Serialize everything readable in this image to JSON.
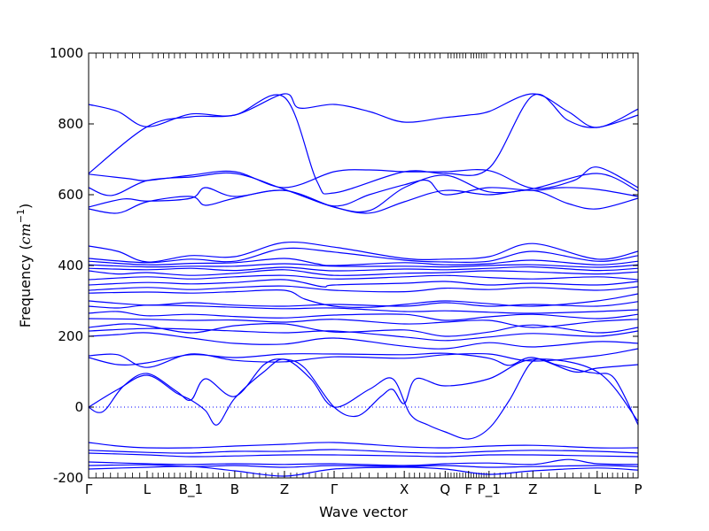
{
  "chart_data": {
    "type": "line",
    "title": "",
    "xlabel": "Wave vector",
    "ylabel": "Frequency (cm⁻¹)",
    "ylabel_parts": {
      "prefix": "Frequency (",
      "unit": "cm",
      "exp": "−1",
      "suffix": ")"
    },
    "ylim": [
      -200,
      1000
    ],
    "yticks": [
      -200,
      0,
      200,
      400,
      600,
      800,
      1000
    ],
    "xlim": [
      0,
      9.4
    ],
    "high_symmetry_points": [
      {
        "label": "Γ",
        "x": 0
      },
      {
        "label": "L",
        "x": 1.0
      },
      {
        "label": "B_1",
        "x": 1.75
      },
      {
        "label": "B",
        "x": 2.5
      },
      {
        "label": "Z",
        "x": 3.35
      },
      {
        "label": "Γ",
        "x": 4.2
      },
      {
        "label": "X",
        "x": 5.4
      },
      {
        "label": "Q",
        "x": 6.1
      },
      {
        "label": "F",
        "x": 6.5
      },
      {
        "label": "P_1",
        "x": 6.85
      },
      {
        "label": "Z",
        "x": 7.6
      },
      {
        "label": "L",
        "x": 8.7
      },
      {
        "label": "P",
        "x": 9.4
      }
    ],
    "zero_line": true,
    "line_color": "#0000ff",
    "series": [
      {
        "x": [
          0,
          0.5,
          1.0,
          1.75,
          2.5,
          3.35,
          3.6,
          4.2,
          4.8,
          5.4,
          6.1,
          6.5,
          6.85,
          7.6,
          8.2,
          8.7,
          9.4
        ],
        "values": [
          855,
          835,
          792,
          828,
          825,
          885,
          845,
          855,
          835,
          805,
          818,
          825,
          835,
          885,
          835,
          790,
          842
        ]
      },
      {
        "x": [
          0,
          1.0,
          1.75,
          2.5,
          3.35,
          3.9,
          4.2,
          5.4,
          6.1,
          6.85,
          7.6,
          8.2,
          8.7,
          9.4
        ],
        "values": [
          660,
          792,
          820,
          825,
          875,
          640,
          605,
          665,
          660,
          675,
          880,
          810,
          790,
          825
        ]
      },
      {
        "x": [
          0,
          0.7,
          1.0,
          1.75,
          2.5,
          3.35,
          4.2,
          4.8,
          5.4,
          6.1,
          6.85,
          7.6,
          8.3,
          8.7,
          9.4
        ],
        "values": [
          658,
          645,
          640,
          655,
          665,
          620,
          665,
          670,
          665,
          665,
          668,
          618,
          640,
          678,
          620
        ]
      },
      {
        "x": [
          0,
          0.4,
          1.0,
          1.75,
          2.5,
          3.35,
          4.2,
          4.8,
          5.4,
          6.1,
          6.85,
          7.6,
          8.7,
          9.4
        ],
        "values": [
          620,
          598,
          640,
          650,
          660,
          615,
          565,
          555,
          620,
          655,
          608,
          617,
          660,
          610
        ]
      },
      {
        "x": [
          0,
          0.6,
          1.0,
          1.75,
          2.0,
          2.5,
          3.35,
          4.2,
          4.8,
          5.4,
          5.8,
          6.1,
          6.85,
          7.6,
          8.1,
          8.7,
          9.4
        ],
        "values": [
          565,
          588,
          582,
          590,
          620,
          595,
          612,
          568,
          600,
          628,
          640,
          600,
          620,
          612,
          620,
          615,
          595
        ]
      },
      {
        "x": [
          0,
          0.5,
          1.0,
          1.75,
          2.0,
          2.5,
          3.35,
          4.2,
          4.8,
          5.4,
          6.1,
          6.85,
          7.6,
          8.2,
          8.7,
          9.4
        ],
        "values": [
          560,
          548,
          580,
          595,
          570,
          590,
          612,
          565,
          548,
          580,
          612,
          600,
          612,
          575,
          560,
          590
        ]
      },
      {
        "x": [
          0,
          0.5,
          1.0,
          1.75,
          2.5,
          3.35,
          4.2,
          5.4,
          6.1,
          6.85,
          7.6,
          8.7,
          9.4
        ],
        "values": [
          455,
          440,
          410,
          428,
          425,
          465,
          452,
          420,
          418,
          425,
          462,
          418,
          440
        ]
      },
      {
        "x": [
          0,
          1.0,
          1.75,
          2.5,
          3.35,
          4.2,
          5.4,
          6.1,
          6.85,
          7.6,
          8.7,
          9.4
        ],
        "values": [
          420,
          408,
          418,
          412,
          448,
          438,
          415,
          410,
          412,
          440,
          412,
          428
        ]
      },
      {
        "x": [
          0,
          1.0,
          1.75,
          2.5,
          3.35,
          3.9,
          4.2,
          5.4,
          6.1,
          6.85,
          7.6,
          8.7,
          9.4
        ],
        "values": [
          412,
          402,
          406,
          408,
          420,
          405,
          400,
          408,
          402,
          405,
          415,
          402,
          412
        ]
      },
      {
        "x": [
          0,
          1.0,
          1.75,
          2.5,
          3.35,
          4.2,
          5.4,
          6.1,
          6.85,
          7.6,
          8.7,
          9.4
        ],
        "values": [
          402,
          396,
          398,
          398,
          405,
          398,
          398,
          396,
          400,
          402,
          395,
          402
        ]
      },
      {
        "x": [
          0,
          1.0,
          1.75,
          2.5,
          3.35,
          4.2,
          5.4,
          6.1,
          6.85,
          7.6,
          8.7,
          9.4
        ],
        "values": [
          392,
          388,
          392,
          386,
          395,
          385,
          390,
          388,
          392,
          396,
          386,
          392
        ]
      },
      {
        "x": [
          0,
          0.5,
          1.0,
          1.75,
          2.5,
          3.35,
          4.2,
          5.4,
          6.1,
          6.85,
          7.6,
          8.7,
          9.4
        ],
        "values": [
          385,
          376,
          380,
          372,
          378,
          388,
          372,
          378,
          380,
          385,
          382,
          376,
          382
        ]
      },
      {
        "x": [
          0,
          1.0,
          1.75,
          2.5,
          3.35,
          4.2,
          5.4,
          6.1,
          6.85,
          7.6,
          8.7,
          9.4
        ],
        "values": [
          360,
          368,
          362,
          368,
          372,
          362,
          368,
          372,
          366,
          362,
          368,
          360
        ]
      },
      {
        "x": [
          0,
          1.0,
          1.75,
          2.5,
          3.35,
          4.0,
          4.2,
          5.4,
          6.1,
          6.85,
          7.6,
          8.7,
          9.4
        ],
        "values": [
          345,
          352,
          348,
          352,
          360,
          340,
          345,
          350,
          355,
          345,
          350,
          345,
          355
        ]
      },
      {
        "x": [
          0,
          1.0,
          1.75,
          2.5,
          3.35,
          4.2,
          5.4,
          6.1,
          6.85,
          7.6,
          8.7,
          9.4
        ],
        "values": [
          330,
          338,
          332,
          338,
          342,
          330,
          326,
          336,
          332,
          338,
          330,
          340
        ]
      },
      {
        "x": [
          0,
          1.0,
          1.75,
          2.5,
          3.35,
          3.7,
          4.2,
          4.8,
          5.4,
          6.1,
          6.85,
          7.6,
          8.7,
          9.4
        ],
        "values": [
          322,
          325,
          322,
          326,
          330,
          305,
          285,
          282,
          290,
          300,
          292,
          285,
          300,
          320
        ]
      },
      {
        "x": [
          0,
          1.0,
          1.75,
          2.5,
          3.35,
          4.2,
          5.4,
          6.1,
          6.85,
          7.6,
          8.7,
          9.4
        ],
        "values": [
          300,
          288,
          295,
          288,
          285,
          290,
          285,
          295,
          285,
          290,
          285,
          298
        ]
      },
      {
        "x": [
          0,
          0.5,
          1.0,
          1.75,
          2.5,
          3.35,
          4.2,
          5.4,
          6.1,
          6.85,
          7.6,
          8.7,
          9.4
        ],
        "values": [
          285,
          280,
          288,
          286,
          282,
          278,
          280,
          270,
          272,
          268,
          265,
          270,
          275
        ]
      },
      {
        "x": [
          0,
          0.5,
          1.0,
          1.75,
          2.5,
          3.35,
          4.2,
          5.4,
          6.1,
          6.85,
          7.6,
          8.7,
          9.4
        ],
        "values": [
          265,
          270,
          258,
          262,
          256,
          252,
          260,
          262,
          245,
          255,
          262,
          250,
          262
        ]
      },
      {
        "x": [
          0,
          1.0,
          1.75,
          2.5,
          3.35,
          4.2,
          5.4,
          6.1,
          6.85,
          7.6,
          8.7,
          9.4
        ],
        "values": [
          250,
          248,
          245,
          246,
          240,
          248,
          235,
          240,
          245,
          225,
          242,
          248
        ]
      },
      {
        "x": [
          0,
          0.6,
          1.0,
          1.75,
          2.5,
          3.35,
          4.2,
          5.4,
          6.1,
          6.85,
          7.6,
          8.7,
          9.4
        ],
        "values": [
          225,
          235,
          230,
          210,
          230,
          235,
          212,
          218,
          200,
          212,
          232,
          210,
          225
        ]
      },
      {
        "x": [
          0,
          1.0,
          1.75,
          2.5,
          3.35,
          4.2,
          5.4,
          6.1,
          6.85,
          7.6,
          8.7,
          9.4
        ],
        "values": [
          215,
          222,
          220,
          215,
          210,
          215,
          198,
          188,
          198,
          208,
          200,
          215
        ]
      },
      {
        "x": [
          0,
          0.5,
          1.0,
          1.75,
          2.5,
          3.35,
          4.2,
          5.4,
          6.1,
          6.85,
          7.6,
          8.7,
          9.4
        ],
        "values": [
          200,
          205,
          210,
          195,
          180,
          178,
          195,
          172,
          165,
          182,
          170,
          185,
          180
        ]
      },
      {
        "x": [
          0,
          0.5,
          1.0,
          1.75,
          2.5,
          3.35,
          4.2,
          5.4,
          6.1,
          6.85,
          7.6,
          8.7,
          9.4
        ],
        "values": [
          145,
          148,
          112,
          150,
          132,
          128,
          142,
          138,
          148,
          150,
          130,
          145,
          165
        ]
      },
      {
        "x": [
          0,
          0.5,
          1.0,
          1.75,
          2.5,
          3.35,
          4.2,
          5.4,
          6.1,
          6.85,
          7.2,
          7.6,
          8.3,
          8.7,
          9.4
        ],
        "values": [
          140,
          120,
          125,
          148,
          140,
          150,
          150,
          148,
          152,
          138,
          118,
          140,
          100,
          110,
          120
        ]
      },
      {
        "x": [
          0,
          0.5,
          1.0,
          1.5,
          1.75,
          2.0,
          2.2,
          2.5,
          3.0,
          3.35,
          3.8,
          4.2,
          4.8,
          5.2,
          5.5,
          5.8,
          6.1,
          6.5,
          6.85,
          7.2,
          7.6,
          8.0,
          8.5,
          8.7,
          9.0,
          9.4
        ],
        "values": [
          0,
          50,
          90,
          40,
          20,
          -10,
          -50,
          25,
          100,
          135,
          80,
          0,
          50,
          80,
          -20,
          -50,
          -70,
          -90,
          -60,
          20,
          130,
          120,
          100,
          95,
          80,
          -50
        ]
      },
      {
        "x": [
          0,
          0.15,
          0.3,
          0.6,
          1.0,
          1.5,
          1.75,
          2.0,
          2.5,
          3.0,
          3.35,
          3.7,
          4.2,
          4.6,
          5.0,
          5.2,
          5.4,
          5.6,
          6.1,
          6.85,
          7.6,
          8.7,
          9.4
        ],
        "values": [
          0,
          -15,
          -5,
          60,
          95,
          45,
          20,
          80,
          30,
          120,
          135,
          110,
          0,
          -25,
          30,
          50,
          10,
          80,
          60,
          80,
          135,
          100,
          -40
        ]
      },
      {
        "x": [
          0,
          0.5,
          1.0,
          1.75,
          2.5,
          3.35,
          4.2,
          5.4,
          6.1,
          6.85,
          7.6,
          8.7,
          9.4
        ],
        "values": [
          -100,
          -110,
          -115,
          -115,
          -110,
          -105,
          -100,
          -112,
          -115,
          -110,
          -108,
          -115,
          -115
        ]
      },
      {
        "x": [
          0,
          1.0,
          1.75,
          2.5,
          3.35,
          4.2,
          5.4,
          6.1,
          6.85,
          7.6,
          8.7,
          9.4
        ],
        "values": [
          -122,
          -128,
          -130,
          -125,
          -125,
          -120,
          -128,
          -130,
          -125,
          -122,
          -125,
          -130
        ]
      },
      {
        "x": [
          0,
          1.0,
          1.75,
          2.5,
          3.35,
          4.2,
          5.4,
          6.1,
          6.85,
          7.6,
          8.7,
          9.4
        ],
        "values": [
          -130,
          -135,
          -140,
          -138,
          -135,
          -135,
          -138,
          -140,
          -135,
          -135,
          -138,
          -140
        ]
      },
      {
        "x": [
          0,
          1.0,
          1.75,
          2.5,
          3.35,
          4.2,
          5.4,
          6.1,
          6.85,
          7.6,
          8.2,
          8.7,
          9.4
        ],
        "values": [
          -155,
          -160,
          -162,
          -160,
          -162,
          -160,
          -165,
          -160,
          -158,
          -162,
          -148,
          -160,
          -162
        ]
      },
      {
        "x": [
          0,
          1.0,
          1.75,
          2.5,
          3.35,
          4.2,
          5.4,
          6.1,
          6.85,
          7.6,
          8.7,
          9.4
        ],
        "values": [
          -165,
          -163,
          -168,
          -165,
          -170,
          -165,
          -168,
          -165,
          -170,
          -168,
          -165,
          -168
        ]
      },
      {
        "x": [
          0,
          1.0,
          1.75,
          2.5,
          3.35,
          4.2,
          5.4,
          6.1,
          6.85,
          7.6,
          8.7,
          9.4
        ],
        "values": [
          -175,
          -170,
          -168,
          -180,
          -195,
          -175,
          -170,
          -175,
          -190,
          -180,
          -172,
          -178
        ]
      }
    ]
  }
}
